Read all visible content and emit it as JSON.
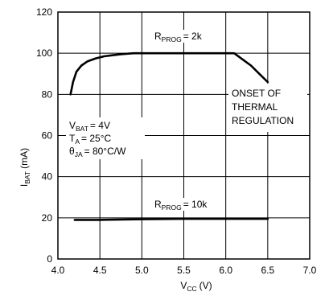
{
  "chart_data": {
    "type": "line",
    "xlabel": "V",
    "xlabel_sub": "CC",
    "xlabel_unit": "(V)",
    "ylabel": "I",
    "ylabel_sub": "BAT",
    "ylabel_unit": "(mA)",
    "xlim": [
      4.0,
      7.0
    ],
    "ylim": [
      0,
      120
    ],
    "xticks": [
      "4.0",
      "4.5",
      "5.0",
      "5.5",
      "6.0",
      "6.5",
      "7.0"
    ],
    "yticks": [
      "0",
      "20",
      "40",
      "60",
      "80",
      "100",
      "120"
    ],
    "grid": true,
    "series": [
      {
        "label_main": "R",
        "label_sub": "PROG",
        "label_value": "= 2k",
        "x": [
          4.15,
          4.18,
          4.22,
          4.28,
          4.35,
          4.45,
          4.55,
          4.65,
          4.75,
          4.9,
          5.0,
          5.5,
          6.0,
          6.1,
          6.2,
          6.3,
          6.4,
          6.5
        ],
        "y": [
          80,
          86,
          91,
          94,
          96,
          97.5,
          98.5,
          99,
          99.5,
          100,
          100,
          100,
          100,
          100,
          97,
          94,
          90,
          86
        ]
      },
      {
        "label_main": "R",
        "label_sub": "PROG",
        "label_value": "= 10k",
        "x": [
          4.2,
          4.5,
          5.0,
          5.5,
          6.0,
          6.5
        ],
        "y": [
          19,
          19,
          19.3,
          19.5,
          19.5,
          19.5
        ]
      }
    ],
    "annotations": {
      "conditions": [
        {
          "main": "V",
          "sub": "BAT",
          "rest": "= 4V"
        },
        {
          "main": "T",
          "sub": "A",
          "rest": "= 25°C"
        },
        {
          "main": "θ",
          "sub": "JA",
          "rest": "= 80°C/W"
        }
      ],
      "onset": [
        "ONSET OF",
        "THERMAL",
        "REGULATION"
      ]
    }
  }
}
